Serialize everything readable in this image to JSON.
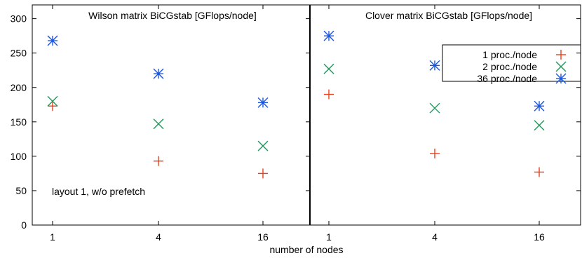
{
  "chart_data": {
    "type": "scatter",
    "xlabel": "number of nodes",
    "x_ticks": [
      "1",
      "4",
      "16"
    ],
    "y_ticks": [
      "0",
      "50",
      "100",
      "150",
      "200",
      "250",
      "300"
    ],
    "ylim": [
      0,
      320
    ],
    "legend": {
      "placement": "top-right of right panel",
      "entries": [
        "1 proc./node",
        "2 proc./node",
        "36 proc./node"
      ]
    },
    "colors": {
      "1 proc./node": "#e8401c",
      "2 proc./node": "#1d9a5a",
      "36 proc./node": "#1a57e0"
    },
    "panels": [
      {
        "title": "Wilson matrix BiCGstab [GFlops/node]",
        "annotation": "layout 1, w/o prefetch",
        "series": [
          {
            "name": "1 proc./node",
            "marker": "plus",
            "values": [
              173,
              93,
              75
            ]
          },
          {
            "name": "2 proc./node",
            "marker": "cross",
            "values": [
              180,
              147,
              115
            ]
          },
          {
            "name": "36 proc./node",
            "marker": "star",
            "values": [
              268,
              220,
              178
            ]
          }
        ]
      },
      {
        "title": "Clover matrix BiCGstab [GFlops/node]",
        "annotation": "",
        "series": [
          {
            "name": "1 proc./node",
            "marker": "plus",
            "values": [
              190,
              104,
              77
            ]
          },
          {
            "name": "2 proc./node",
            "marker": "cross",
            "values": [
              227,
              170,
              145
            ]
          },
          {
            "name": "36 proc./node",
            "marker": "star",
            "values": [
              275,
              232,
              173
            ]
          }
        ]
      }
    ]
  }
}
